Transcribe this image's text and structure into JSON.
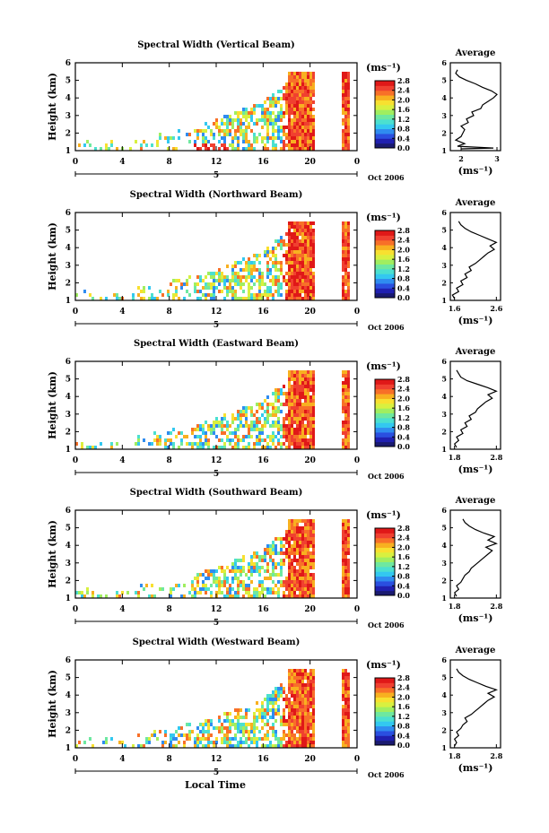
{
  "chart_data": [
    {
      "type": "heatmap",
      "title": "Spectral Width (Vertical Beam)",
      "ylabel": "Height (km)",
      "x_ticks": [
        "0",
        "4",
        "8",
        "12",
        "16",
        "20",
        "0"
      ],
      "y_ticks": [
        "1",
        "2",
        "3",
        "4",
        "5",
        "6"
      ],
      "xlim": [
        0,
        24
      ],
      "ylim": [
        1,
        6
      ],
      "day_marker": "5",
      "date_label": "Oct 2006",
      "colorbar": {
        "unit": "(ms⁻¹)",
        "ticks": [
          "2.8",
          "2.4",
          "2.0",
          "1.6",
          "1.2",
          "0.8",
          "0.4",
          "0.0"
        ],
        "min": 0.0,
        "max": 2.8
      },
      "profile": {
        "title": "Average",
        "xlabel": "(ms⁻¹)",
        "x_ticks": [
          "2",
          "3"
        ],
        "xlim": [
          1.7,
          3.1
        ],
        "y_ticks": [
          "1",
          "2",
          "3",
          "4",
          "5",
          "6"
        ],
        "points": [
          [
            2.0,
            1.1
          ],
          [
            2.9,
            1.15
          ],
          [
            1.9,
            1.25
          ],
          [
            2.1,
            1.4
          ],
          [
            1.85,
            1.6
          ],
          [
            2.0,
            1.8
          ],
          [
            2.05,
            2.0
          ],
          [
            2.1,
            2.2
          ],
          [
            2.0,
            2.4
          ],
          [
            2.2,
            2.6
          ],
          [
            2.15,
            2.8
          ],
          [
            2.35,
            3.0
          ],
          [
            2.3,
            3.2
          ],
          [
            2.55,
            3.4
          ],
          [
            2.6,
            3.6
          ],
          [
            2.75,
            3.8
          ],
          [
            2.9,
            4.0
          ],
          [
            3.0,
            4.2
          ],
          [
            2.85,
            4.4
          ],
          [
            2.6,
            4.6
          ],
          [
            2.4,
            4.8
          ],
          [
            2.15,
            5.0
          ],
          [
            1.95,
            5.2
          ],
          [
            1.85,
            5.4
          ],
          [
            1.9,
            5.6
          ]
        ]
      }
    },
    {
      "type": "heatmap",
      "title": "Spectral Width (Northward Beam)",
      "ylabel": "Height (km)",
      "x_ticks": [
        "0",
        "4",
        "8",
        "12",
        "16",
        "20",
        "0"
      ],
      "y_ticks": [
        "1",
        "2",
        "3",
        "4",
        "5",
        "6"
      ],
      "xlim": [
        0,
        24
      ],
      "ylim": [
        1,
        6
      ],
      "day_marker": "5",
      "date_label": "Oct 2006",
      "colorbar": {
        "unit": "(ms⁻¹)",
        "ticks": [
          "2.8",
          "2.4",
          "2.0",
          "1.6",
          "1.2",
          "0.8",
          "0.4",
          "0.0"
        ],
        "min": 0.0,
        "max": 2.8
      },
      "profile": {
        "title": "Average",
        "xlabel": "(ms⁻¹)",
        "x_ticks": [
          "1.6",
          "2.6"
        ],
        "xlim": [
          1.5,
          2.7
        ],
        "y_ticks": [
          "1",
          "2",
          "3",
          "4",
          "5",
          "6"
        ],
        "points": [
          [
            1.6,
            1.1
          ],
          [
            1.55,
            1.3
          ],
          [
            1.7,
            1.5
          ],
          [
            1.65,
            1.7
          ],
          [
            1.8,
            1.9
          ],
          [
            1.75,
            2.1
          ],
          [
            1.9,
            2.3
          ],
          [
            1.85,
            2.5
          ],
          [
            2.0,
            2.7
          ],
          [
            1.95,
            2.9
          ],
          [
            2.1,
            3.1
          ],
          [
            2.2,
            3.3
          ],
          [
            2.3,
            3.5
          ],
          [
            2.4,
            3.7
          ],
          [
            2.55,
            3.9
          ],
          [
            2.45,
            4.1
          ],
          [
            2.6,
            4.3
          ],
          [
            2.4,
            4.5
          ],
          [
            2.2,
            4.7
          ],
          [
            2.0,
            4.9
          ],
          [
            1.85,
            5.1
          ],
          [
            1.75,
            5.3
          ],
          [
            1.7,
            5.5
          ]
        ]
      }
    },
    {
      "type": "heatmap",
      "title": "Spectral Width (Eastward Beam)",
      "ylabel": "Height (km)",
      "x_ticks": [
        "0",
        "4",
        "8",
        "12",
        "16",
        "20",
        "0"
      ],
      "y_ticks": [
        "1",
        "2",
        "3",
        "4",
        "5",
        "6"
      ],
      "xlim": [
        0,
        24
      ],
      "ylim": [
        1,
        6
      ],
      "day_marker": "5",
      "date_label": "Oct 2006",
      "colorbar": {
        "unit": "(ms⁻¹)",
        "ticks": [
          "2.8",
          "2.4",
          "2.0",
          "1.6",
          "1.2",
          "0.8",
          "0.4",
          "0.0"
        ],
        "min": 0.0,
        "max": 2.8
      },
      "profile": {
        "title": "Average",
        "xlabel": "(ms⁻¹)",
        "x_ticks": [
          "1.8",
          "2.8"
        ],
        "xlim": [
          1.7,
          2.9
        ],
        "y_ticks": [
          "1",
          "2",
          "3",
          "4",
          "5",
          "6"
        ],
        "points": [
          [
            1.85,
            1.1
          ],
          [
            1.8,
            1.3
          ],
          [
            1.9,
            1.5
          ],
          [
            1.85,
            1.7
          ],
          [
            2.0,
            1.9
          ],
          [
            1.95,
            2.1
          ],
          [
            2.1,
            2.3
          ],
          [
            2.05,
            2.5
          ],
          [
            2.2,
            2.7
          ],
          [
            2.15,
            2.9
          ],
          [
            2.3,
            3.1
          ],
          [
            2.35,
            3.3
          ],
          [
            2.45,
            3.5
          ],
          [
            2.55,
            3.7
          ],
          [
            2.7,
            3.9
          ],
          [
            2.6,
            4.1
          ],
          [
            2.8,
            4.3
          ],
          [
            2.6,
            4.5
          ],
          [
            2.35,
            4.7
          ],
          [
            2.1,
            4.9
          ],
          [
            1.95,
            5.1
          ],
          [
            1.9,
            5.3
          ],
          [
            1.85,
            5.5
          ]
        ]
      }
    },
    {
      "type": "heatmap",
      "title": "Spectral Width (Southward Beam)",
      "ylabel": "Height (km)",
      "x_ticks": [
        "0",
        "4",
        "8",
        "12",
        "16",
        "20",
        "0"
      ],
      "y_ticks": [
        "1",
        "2",
        "3",
        "4",
        "5",
        "6"
      ],
      "xlim": [
        0,
        24
      ],
      "ylim": [
        1,
        6
      ],
      "day_marker": "5",
      "date_label": "Oct 2006",
      "colorbar": {
        "unit": "(ms⁻¹)",
        "ticks": [
          "2.8",
          "2.4",
          "2.0",
          "1.6",
          "1.2",
          "0.8",
          "0.4",
          "0.0"
        ],
        "min": 0.0,
        "max": 2.8
      },
      "profile": {
        "title": "Average",
        "xlabel": "(ms⁻¹)",
        "x_ticks": [
          "1.8",
          "2.8"
        ],
        "xlim": [
          1.7,
          2.9
        ],
        "y_ticks": [
          "1",
          "2",
          "3",
          "4",
          "5",
          "6"
        ],
        "points": [
          [
            1.85,
            1.1
          ],
          [
            1.8,
            1.3
          ],
          [
            1.9,
            1.5
          ],
          [
            1.85,
            1.7
          ],
          [
            1.95,
            1.9
          ],
          [
            2.0,
            2.1
          ],
          [
            2.05,
            2.3
          ],
          [
            2.15,
            2.5
          ],
          [
            2.2,
            2.7
          ],
          [
            2.3,
            2.9
          ],
          [
            2.4,
            3.1
          ],
          [
            2.5,
            3.3
          ],
          [
            2.6,
            3.5
          ],
          [
            2.7,
            3.7
          ],
          [
            2.55,
            3.9
          ],
          [
            2.8,
            4.1
          ],
          [
            2.6,
            4.3
          ],
          [
            2.75,
            4.5
          ],
          [
            2.5,
            4.7
          ],
          [
            2.3,
            4.9
          ],
          [
            2.15,
            5.1
          ],
          [
            2.05,
            5.3
          ],
          [
            2.0,
            5.5
          ]
        ]
      }
    },
    {
      "type": "heatmap",
      "title": "Spectral Width (Westward Beam)",
      "ylabel": "Height (km)",
      "x_ticks": [
        "0",
        "4",
        "8",
        "12",
        "16",
        "20",
        "0"
      ],
      "y_ticks": [
        "1",
        "2",
        "3",
        "4",
        "5",
        "6"
      ],
      "xlim": [
        0,
        24
      ],
      "ylim": [
        1,
        6
      ],
      "day_marker": "5",
      "date_label": "Oct 2006",
      "colorbar": {
        "unit": "(ms⁻¹)",
        "ticks": [
          "2.8",
          "2.4",
          "2.0",
          "1.6",
          "1.2",
          "0.8",
          "0.4",
          "0.0"
        ],
        "min": 0.0,
        "max": 2.8
      },
      "profile": {
        "title": "Average",
        "xlabel": "(ms⁻¹)",
        "x_ticks": [
          "1.8",
          "2.8"
        ],
        "xlim": [
          1.7,
          2.9
        ],
        "y_ticks": [
          "1",
          "2",
          "3",
          "4",
          "5",
          "6"
        ],
        "points": [
          [
            1.8,
            1.1
          ],
          [
            1.85,
            1.3
          ],
          [
            1.8,
            1.5
          ],
          [
            1.9,
            1.7
          ],
          [
            1.85,
            1.9
          ],
          [
            1.95,
            2.1
          ],
          [
            2.0,
            2.3
          ],
          [
            2.1,
            2.5
          ],
          [
            2.05,
            2.7
          ],
          [
            2.2,
            2.9
          ],
          [
            2.3,
            3.1
          ],
          [
            2.4,
            3.3
          ],
          [
            2.5,
            3.5
          ],
          [
            2.6,
            3.7
          ],
          [
            2.75,
            3.9
          ],
          [
            2.6,
            4.1
          ],
          [
            2.8,
            4.3
          ],
          [
            2.55,
            4.5
          ],
          [
            2.35,
            4.7
          ],
          [
            2.15,
            4.9
          ],
          [
            2.0,
            5.1
          ],
          [
            1.9,
            5.3
          ],
          [
            1.85,
            5.5
          ]
        ]
      }
    }
  ],
  "shared": {
    "xlabel": "Local Time"
  },
  "colorscale": [
    "#1a1a70",
    "#2020b0",
    "#2a4fe0",
    "#2f8cf0",
    "#33c8f0",
    "#4be0d0",
    "#6ee8a0",
    "#a0ee60",
    "#d8f040",
    "#f8e030",
    "#f8b020",
    "#f87028",
    "#f04030",
    "#e01818"
  ]
}
